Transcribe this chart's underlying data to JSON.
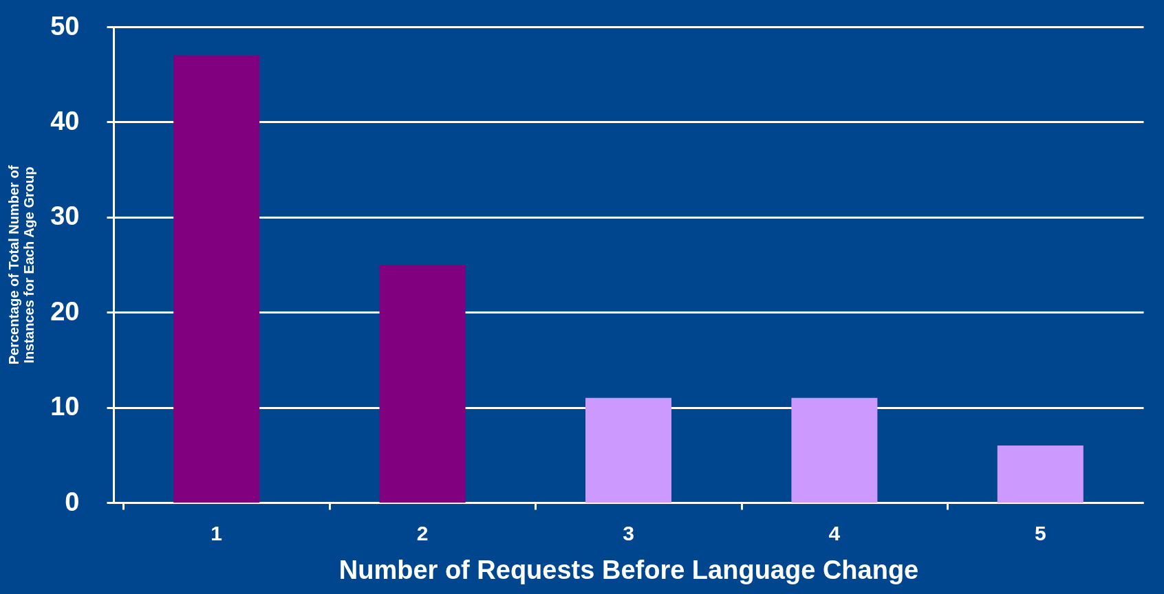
{
  "chart_data": {
    "type": "bar",
    "xlabel": "Number of Requests Before Language Change",
    "ylabel": "Percentage of Total Number of\nInstances for Each Age Group",
    "categories": [
      "1",
      "2",
      "3",
      "4",
      "5"
    ],
    "values": [
      47,
      25,
      11,
      11,
      6
    ],
    "colors": [
      "#800080",
      "#800080",
      "#cc99ff",
      "#cc99ff",
      "#cc99ff"
    ],
    "ylim": [
      0,
      50
    ],
    "yticks": [
      0,
      10,
      20,
      30,
      40,
      50
    ],
    "grid": "y"
  }
}
